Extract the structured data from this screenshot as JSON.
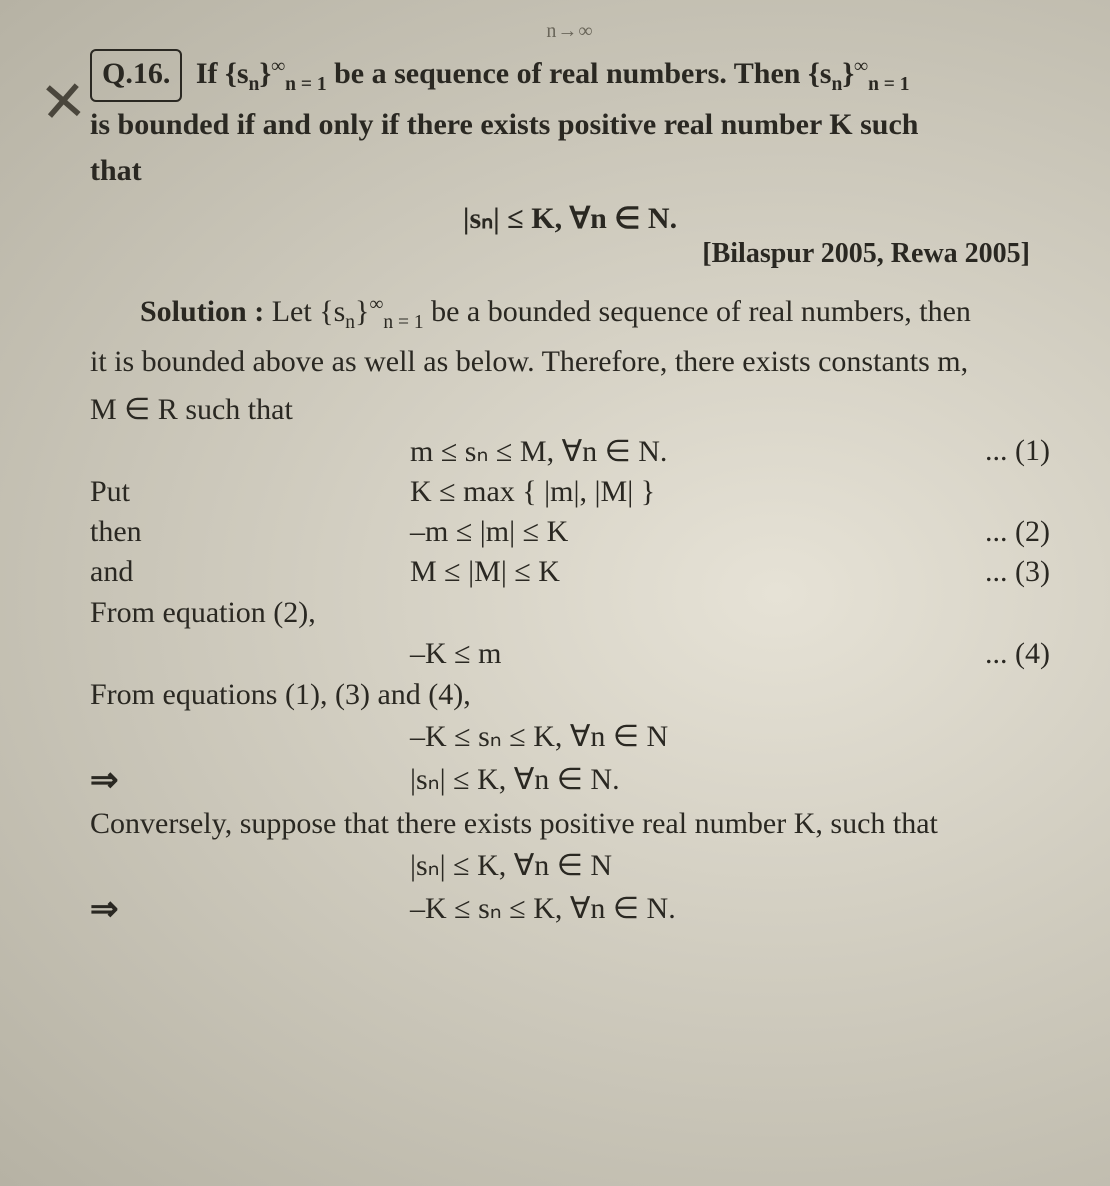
{
  "top_mark": "n→∞",
  "question": {
    "number": "Q.16.",
    "text_part1": "If {s",
    "seq_sub1": "n",
    "text_part1b": "}",
    "seq_top1": "∞",
    "seq_bot1": "n = 1",
    "text_part2": " be a sequence of real numbers. Then {s",
    "seq_sub2": "n",
    "text_part2b": "}",
    "seq_top2": "∞",
    "seq_bot2": "n = 1",
    "text_part3": "is bounded if and only if there exists positive real number K such",
    "text_part4": "that",
    "condition": "|sₙ| ≤ K,  ∀n ∈ N.",
    "attribution": "[Bilaspur 2005, Rewa 2005]"
  },
  "solution": {
    "lead": "Solution : ",
    "line1a": "Let {s",
    "line1_sub": "n",
    "line1b": "}",
    "line1_top": "∞",
    "line1_bot": "n = 1",
    "line1c": " be a bounded sequence of real numbers, then",
    "line2": "it is bounded above as well as below. Therefore, there exists constants m,",
    "line3": "M ∈ R such that",
    "eq1": "m ≤ sₙ ≤ M, ∀n ∈ N.",
    "eq1_num": "... (1)",
    "put_label": "Put",
    "eq_put": "K ≤ max { |m|, |M| }",
    "then_label": "then",
    "eq2": "–m ≤ |m| ≤ K",
    "eq2_num": "... (2)",
    "and_label": "and",
    "eq3": "M ≤ |M| ≤ K",
    "eq3_num": "... (3)",
    "from2": "From equation (2),",
    "eq4": "–K ≤ m",
    "eq4_num": "... (4)",
    "from134": "From equations (1), (3) and (4),",
    "eq5": "–K ≤ sₙ ≤ K, ∀n ∈ N",
    "arrow1": "⇒",
    "eq6": "|sₙ| ≤ K, ∀n ∈ N.",
    "converse": "Conversely, suppose that there exists positive real number K, such that",
    "eq7": "|sₙ| ≤ K, ∀n ∈ N",
    "arrow2": "⇒",
    "eq8": "–K ≤ sₙ ≤ K, ∀n ∈ N."
  },
  "colors": {
    "text": "#2a2822",
    "bg_center": "#e6e2d6",
    "bg_edge": "#b6b2a4"
  },
  "typography": {
    "body_fontsize_pt": 22,
    "family": "serif",
    "weight_bold": 700
  }
}
